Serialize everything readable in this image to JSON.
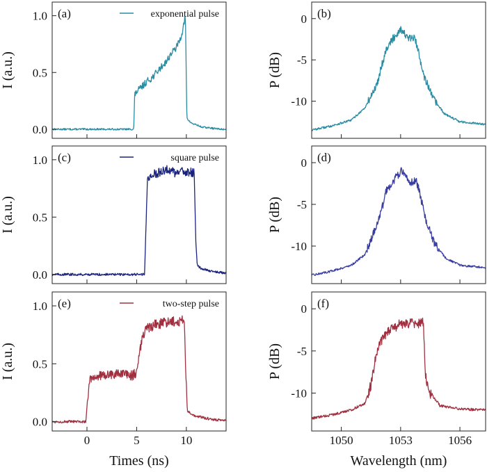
{
  "chart_data": [
    {
      "id": "a",
      "type": "line",
      "panel_label": "(a)",
      "legend": "exponential pulse",
      "color": "#2a8ca2",
      "ylabel": "I (a.u.)",
      "xlabel": "",
      "xlim": [
        -3.5,
        14
      ],
      "ylim": [
        -0.08,
        1.12
      ],
      "xticks": [
        0,
        5,
        10
      ],
      "xtick_labels": [
        "",
        "",
        ""
      ],
      "yticks": [
        0,
        0.5,
        1.0
      ],
      "ytick_labels": [
        "0.0",
        "0.5",
        "1.0"
      ],
      "x": [
        -3.5,
        4.7,
        4.8,
        5.0,
        5.5,
        6.0,
        6.5,
        7.0,
        7.5,
        8.0,
        8.5,
        9.0,
        9.4,
        9.7,
        9.9,
        10.05,
        10.3,
        10.6,
        11.0,
        11.5,
        12.5,
        13.5,
        14
      ],
      "y": [
        0.0,
        0.0,
        0.3,
        0.33,
        0.37,
        0.42,
        0.45,
        0.5,
        0.55,
        0.6,
        0.67,
        0.72,
        0.8,
        0.9,
        1.0,
        0.1,
        0.07,
        0.05,
        0.04,
        0.02,
        0.01,
        0.0,
        0.0
      ],
      "noise": 0.03
    },
    {
      "id": "b",
      "type": "line",
      "panel_label": "(b)",
      "color": "#2a8ca2",
      "ylabel": "P (dB)",
      "xlabel": "",
      "xlim": [
        1048.5,
        1057.3
      ],
      "ylim": [
        -14.5,
        2
      ],
      "xticks": [
        1050,
        1053,
        1056
      ],
      "xtick_labels": [
        "",
        "",
        ""
      ],
      "yticks": [
        -10,
        -5,
        0
      ],
      "ytick_labels": [
        "-10",
        "-5",
        "0"
      ],
      "x": [
        1048.5,
        1049.5,
        1050.5,
        1051.2,
        1051.8,
        1052.0,
        1052.3,
        1052.6,
        1053.0,
        1053.4,
        1053.7,
        1053.9,
        1054.2,
        1054.6,
        1055.2,
        1056.0,
        1057.3
      ],
      "y": [
        -13.5,
        -13.0,
        -12.3,
        -10.8,
        -8.0,
        -6.0,
        -3.5,
        -2.5,
        -1.2,
        -2.5,
        -2.3,
        -4.0,
        -7.0,
        -9.5,
        -11.5,
        -12.5,
        -12.8
      ],
      "noise": 0.5
    },
    {
      "id": "c",
      "type": "line",
      "panel_label": "(c)",
      "legend": "square pulse",
      "color": "#1a237e",
      "ylabel": "I (a.u.)",
      "xlabel": "",
      "xlim": [
        -3.5,
        14
      ],
      "ylim": [
        -0.08,
        1.12
      ],
      "xticks": [
        0,
        5,
        10
      ],
      "xtick_labels": [
        "",
        "",
        ""
      ],
      "yticks": [
        0,
        0.5,
        1.0
      ],
      "ytick_labels": [
        "0.0",
        "0.5",
        "1.0"
      ],
      "x": [
        -3.5,
        5.8,
        5.95,
        6.1,
        7.0,
        8.0,
        9.0,
        10.0,
        10.8,
        10.95,
        11.1,
        11.5,
        12.5,
        14
      ],
      "y": [
        0.0,
        0.0,
        0.45,
        0.85,
        0.88,
        0.92,
        0.88,
        0.9,
        0.88,
        0.3,
        0.08,
        0.05,
        0.03,
        0.01
      ],
      "noise": 0.04
    },
    {
      "id": "d",
      "type": "line",
      "panel_label": "(d)",
      "color": "#3a3ea0",
      "ylabel": "P (dB)",
      "xlabel": "",
      "xlim": [
        1048.5,
        1057.3
      ],
      "ylim": [
        -14.5,
        2
      ],
      "xticks": [
        1050,
        1053,
        1056
      ],
      "xtick_labels": [
        "",
        "",
        ""
      ],
      "yticks": [
        -10,
        -5,
        0
      ],
      "ytick_labels": [
        "-10",
        "-5",
        "0"
      ],
      "x": [
        1048.5,
        1049.5,
        1050.5,
        1051.2,
        1051.7,
        1052.0,
        1052.3,
        1052.7,
        1053.0,
        1053.5,
        1053.8,
        1054.0,
        1054.3,
        1054.7,
        1055.3,
        1056.0,
        1057.3
      ],
      "y": [
        -13.5,
        -13.0,
        -12.3,
        -11.0,
        -8.0,
        -6.0,
        -3.2,
        -2.0,
        -1.0,
        -2.3,
        -2.2,
        -4.0,
        -7.0,
        -9.7,
        -11.5,
        -12.3,
        -12.6
      ],
      "noise": 0.5
    },
    {
      "id": "e",
      "type": "line",
      "panel_label": "(e)",
      "legend": "two-step pulse",
      "color": "#a03040",
      "ylabel": "I (a.u.)",
      "xlabel": "Times (ns)",
      "xlim": [
        -3.5,
        14
      ],
      "ylim": [
        -0.08,
        1.12
      ],
      "xticks": [
        0,
        5,
        10
      ],
      "xtick_labels": [
        "0",
        "5",
        "10"
      ],
      "yticks": [
        0,
        0.5,
        1.0
      ],
      "ytick_labels": [
        "0.0",
        "0.5",
        "1.0"
      ],
      "x": [
        -3.5,
        -0.1,
        0.05,
        0.3,
        1.5,
        3.0,
        4.5,
        5.0,
        5.2,
        5.5,
        6.0,
        7.0,
        8.0,
        9.0,
        9.8,
        9.95,
        10.1,
        10.5,
        11.5,
        12.5,
        14
      ],
      "y": [
        0.0,
        0.0,
        0.2,
        0.38,
        0.4,
        0.41,
        0.4,
        0.42,
        0.55,
        0.7,
        0.8,
        0.84,
        0.86,
        0.87,
        0.87,
        0.4,
        0.1,
        0.06,
        0.04,
        0.02,
        0.01
      ],
      "noise": 0.045
    },
    {
      "id": "f",
      "type": "line",
      "panel_label": "(f)",
      "color": "#a03040",
      "ylabel": "P (dB)",
      "xlabel": "Wavelength (nm)",
      "xlim": [
        1048.5,
        1057.3
      ],
      "ylim": [
        -14.5,
        2
      ],
      "xticks": [
        1050,
        1053,
        1056
      ],
      "xtick_labels": [
        "1050",
        "1053",
        "1056"
      ],
      "yticks": [
        -10,
        -5,
        0
      ],
      "ytick_labels": [
        "-10",
        "-5",
        "0"
      ],
      "x": [
        1048.5,
        1049.5,
        1050.5,
        1051.2,
        1051.5,
        1051.8,
        1052.1,
        1052.5,
        1053.0,
        1053.5,
        1053.9,
        1054.15,
        1054.25,
        1054.5,
        1055.0,
        1056.0,
        1057.3
      ],
      "y": [
        -13.0,
        -12.6,
        -12.0,
        -11.2,
        -9.0,
        -5.0,
        -3.5,
        -2.4,
        -1.8,
        -1.7,
        -1.8,
        -1.5,
        -8.0,
        -10.0,
        -11.5,
        -11.9,
        -12.0
      ],
      "noise": 0.6
    }
  ]
}
